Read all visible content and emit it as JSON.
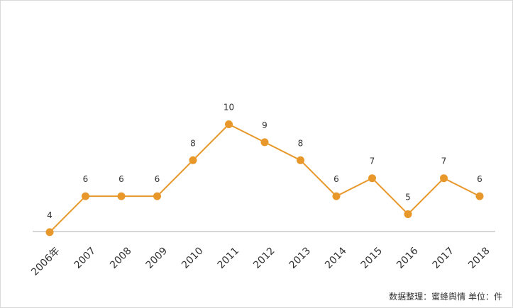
{
  "colors": {
    "series": "#E8982A",
    "axis": "#c8c8c8"
  },
  "chart_data": {
    "type": "line",
    "categories": [
      "2006年",
      "2007",
      "2008",
      "2009",
      "2010",
      "2011",
      "2012",
      "2013",
      "2014",
      "2015",
      "2016",
      "2017",
      "2018"
    ],
    "values": [
      4,
      6,
      6,
      6,
      8,
      10,
      9,
      8,
      6,
      7,
      5,
      7,
      6
    ],
    "title": "",
    "xlabel": "",
    "ylabel": "",
    "grid": false,
    "data_labels": true
  },
  "footer": {
    "source_note": "数据整理：蜜蜂舆情  单位：件"
  }
}
